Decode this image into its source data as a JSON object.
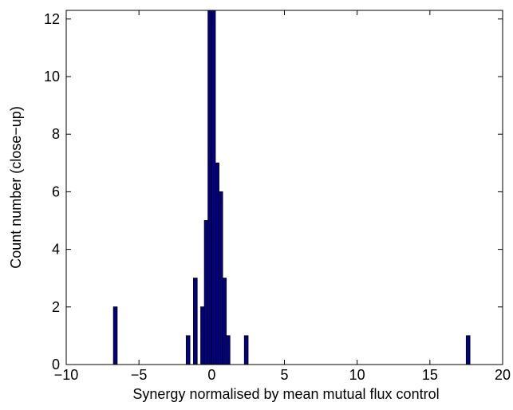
{
  "chart_data": {
    "type": "bar",
    "xlabel": "Synergy normalised by mean mutual flux control",
    "ylabel": "Count number (close−up)",
    "xlim": [
      -10,
      20
    ],
    "ylim": [
      0,
      12.3
    ],
    "xticks": [
      -10,
      -5,
      0,
      5,
      10,
      15,
      20
    ],
    "xtick_labels": [
      "−10",
      "−5",
      "0",
      "5",
      "10",
      "15",
      "20"
    ],
    "yticks": [
      0,
      2,
      4,
      6,
      8,
      10,
      12
    ],
    "ytick_labels": [
      "0",
      "2",
      "4",
      "6",
      "8",
      "10",
      "12"
    ],
    "bin_width": 0.25,
    "bars": [
      {
        "x": -6.75,
        "count": 2
      },
      {
        "x": -1.75,
        "count": 1
      },
      {
        "x": -1.25,
        "count": 3
      },
      {
        "x": -0.75,
        "count": 2
      },
      {
        "x": -0.5,
        "count": 5
      },
      {
        "x": -0.25,
        "count": 12.3
      },
      {
        "x": 0.0,
        "count": 12.3
      },
      {
        "x": 0.25,
        "count": 7
      },
      {
        "x": 0.5,
        "count": 6
      },
      {
        "x": 0.75,
        "count": 3
      },
      {
        "x": 1.0,
        "count": 1
      },
      {
        "x": 2.25,
        "count": 1
      },
      {
        "x": 17.5,
        "count": 1
      }
    ],
    "bar_color": "#00008b",
    "grid": false,
    "legend": false
  }
}
